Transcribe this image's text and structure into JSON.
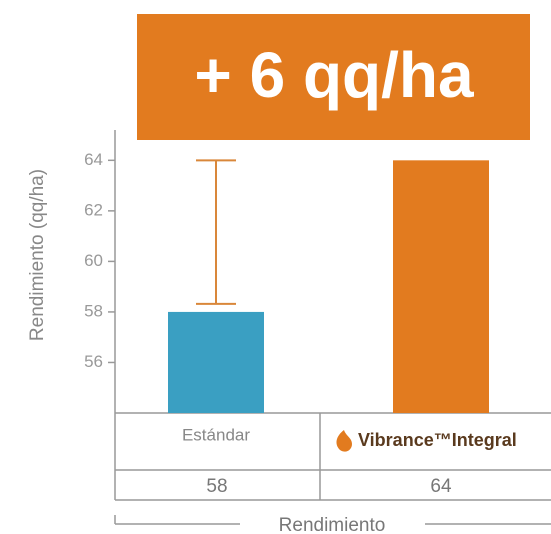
{
  "chart_data": {
    "type": "bar",
    "title": "+ 6 qq/ha",
    "y_label": "Rendimiento (qq/ha)",
    "x_label": "Rendimiento",
    "categories": [
      "Estándar",
      "Vibrance™Integral"
    ],
    "values": [
      58,
      64
    ],
    "errors": [
      6,
      null
    ],
    "colors": [
      "#3a9fc2",
      "#e27b1f"
    ],
    "ylim": [
      54,
      65.2
    ],
    "yticks": [
      56,
      58,
      60,
      62,
      64
    ]
  }
}
